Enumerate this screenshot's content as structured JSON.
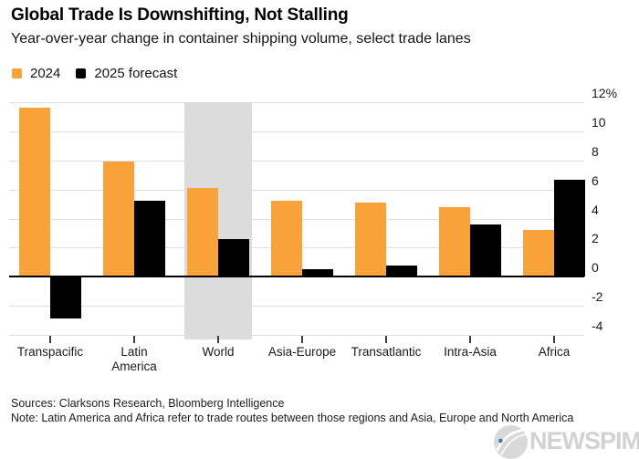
{
  "header": {
    "title": "Global Trade Is Downshifting, Not Stalling",
    "subtitle": "Year-over-year change in container shipping volume, select trade lanes"
  },
  "legend": [
    {
      "label": "2024",
      "color": "#f9a23b"
    },
    {
      "label": "2025 forecast",
      "color": "#000000"
    }
  ],
  "chart_data": {
    "type": "bar",
    "title": "Global Trade Is Downshifting, Not Stalling",
    "subtitle": "Year-over-year change in container shipping volume, select trade lanes",
    "unit": "percent",
    "categories": [
      "Transpacific",
      "Latin America",
      "World",
      "Asia-Europe",
      "Transatlantic",
      "Intra-Asia",
      "Africa"
    ],
    "category_label_lines": [
      [
        "Transpacific"
      ],
      [
        "Latin",
        "America"
      ],
      [
        "World"
      ],
      [
        "Asia-Europe"
      ],
      [
        "Transatlantic"
      ],
      [
        "Intra-Asia"
      ],
      [
        "Africa"
      ]
    ],
    "series": [
      {
        "name": "2024",
        "color": "#f9a23b",
        "values": [
          11.6,
          7.9,
          6.1,
          5.2,
          5.1,
          4.8,
          3.2
        ]
      },
      {
        "name": "2025 forecast",
        "color": "#000000",
        "values": [
          -2.9,
          5.2,
          2.6,
          0.5,
          0.8,
          3.6,
          6.7
        ]
      }
    ],
    "ylim": [
      -4,
      12
    ],
    "ytick_step": 2,
    "ytick_labels": [
      "12%",
      "10",
      "8",
      "6",
      "4",
      "2",
      "0",
      "-2",
      "-4"
    ],
    "axis_side": "right",
    "grid": true,
    "zero_line": true,
    "highlight_category": "World",
    "highlight_color": "#dcdcdc"
  },
  "footer": {
    "sources": "Sources: Clarksons Research, Bloomberg Intelligence",
    "note": "Note: Latin America and Africa refer to trade routes between those regions and Asia, Europe and North America"
  },
  "watermark": {
    "text": "NEWSPIM"
  }
}
